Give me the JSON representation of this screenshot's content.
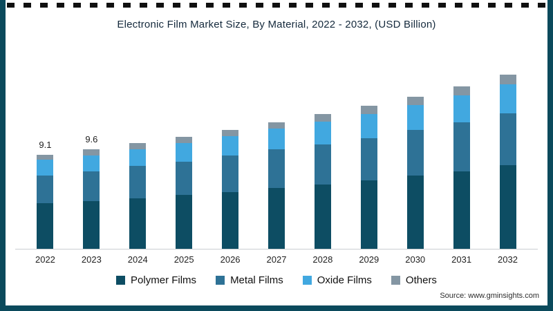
{
  "frame_border_color": "#0b4a5c",
  "source_text": "Source: www.gminsights.com",
  "chart_data": {
    "type": "bar",
    "stacked": true,
    "title": "Electronic Film Market Size, By Material, 2022 - 2032, (USD Billion)",
    "xlabel": "",
    "ylabel": "",
    "ylim": [
      0,
      18
    ],
    "grid": false,
    "legend_position": "bottom",
    "categories": [
      "2022",
      "2023",
      "2024",
      "2025",
      "2026",
      "2027",
      "2028",
      "2029",
      "2030",
      "2031",
      "2032"
    ],
    "series": [
      {
        "name": "Polymer Films",
        "color": "#0d4d63",
        "values": [
          4.4,
          4.6,
          4.9,
          5.2,
          5.5,
          5.9,
          6.2,
          6.6,
          7.1,
          7.5,
          8.1
        ]
      },
      {
        "name": "Metal Films",
        "color": "#2e7296",
        "values": [
          2.7,
          2.9,
          3.1,
          3.2,
          3.5,
          3.7,
          3.9,
          4.1,
          4.4,
          4.7,
          5.0
        ]
      },
      {
        "name": "Oxide Films",
        "color": "#41a8e0",
        "values": [
          1.5,
          1.5,
          1.6,
          1.8,
          1.9,
          2.0,
          2.2,
          2.3,
          2.4,
          2.6,
          2.8
        ]
      },
      {
        "name": "Others",
        "color": "#8496a3",
        "values": [
          0.5,
          0.6,
          0.6,
          0.6,
          0.6,
          0.6,
          0.7,
          0.8,
          0.8,
          0.9,
          0.9
        ]
      }
    ],
    "totals": [
      9.1,
      9.6,
      10.2,
      10.8,
      11.5,
      12.2,
      13.0,
      13.8,
      14.7,
      15.7,
      16.8
    ],
    "data_labels": {
      "2022": "9.1",
      "2023": "9.6"
    }
  }
}
